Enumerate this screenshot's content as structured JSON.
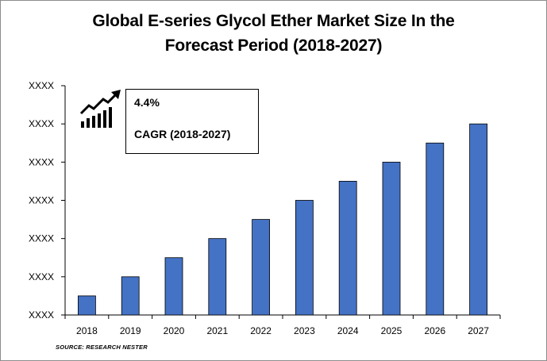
{
  "title_line1": "Global E-series Glycol Ether Market Size In the",
  "title_line2": "Forecast Period (2018-2027)",
  "cagr": {
    "value": "4.4%",
    "label": "CAGR (2018-2027)"
  },
  "source": "SOURCE: RESEARCH NESTER",
  "chart_data": {
    "type": "bar",
    "title": "Global E-series Glycol Ether Market Size In the Forecast Period (2018-2027)",
    "categories": [
      "2018",
      "2019",
      "2020",
      "2021",
      "2022",
      "2023",
      "2024",
      "2025",
      "2026",
      "2027"
    ],
    "values": [
      0.5,
      1.0,
      1.5,
      2.0,
      2.5,
      3.0,
      3.5,
      4.0,
      4.5,
      5.0
    ],
    "ytick_labels": [
      "XXXX",
      "XXXX",
      "XXXX",
      "XXXX",
      "XXXX",
      "XXXX",
      "XXXX"
    ],
    "ylim": [
      0,
      6
    ],
    "xlabel": "",
    "ylabel": "",
    "grid": false,
    "bar_color": "#4472c4",
    "bar_edge_color": "#000000"
  }
}
